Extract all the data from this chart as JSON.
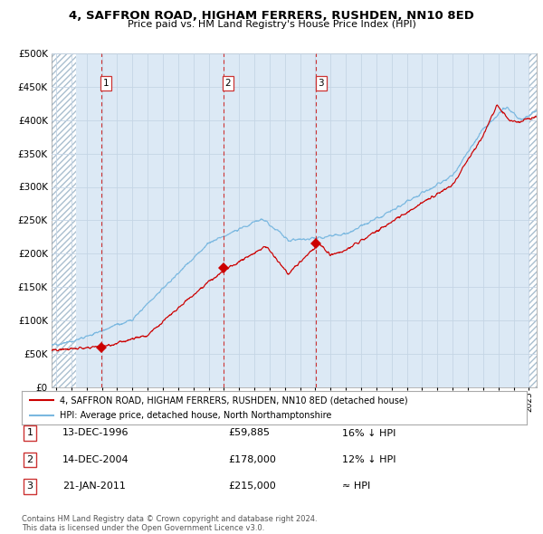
{
  "title1": "4, SAFFRON ROAD, HIGHAM FERRERS, RUSHDEN, NN10 8ED",
  "title2": "Price paid vs. HM Land Registry's House Price Index (HPI)",
  "legend_line1": "4, SAFFRON ROAD, HIGHAM FERRERS, RUSHDEN, NN10 8ED (detached house)",
  "legend_line2": "HPI: Average price, detached house, North Northamptonshire",
  "table_rows": [
    {
      "num": "1",
      "date": "13-DEC-1996",
      "price": "£59,885",
      "hpi": "16% ↓ HPI"
    },
    {
      "num": "2",
      "date": "14-DEC-2004",
      "price": "£178,000",
      "hpi": "12% ↓ HPI"
    },
    {
      "num": "3",
      "date": "21-JAN-2011",
      "price": "£215,000",
      "hpi": "≈ HPI"
    }
  ],
  "footer": "Contains HM Land Registry data © Crown copyright and database right 2024.\nThis data is licensed under the Open Government Licence v3.0.",
  "sale_dates": [
    1996.96,
    2004.96,
    2011.06
  ],
  "sale_prices": [
    59885,
    178000,
    215000
  ],
  "sale_labels": [
    "1",
    "2",
    "3"
  ],
  "hpi_color": "#7ab8e0",
  "price_color": "#cc0000",
  "bg_color": "#dce9f5",
  "hatch_color": "#aabfcf",
  "grid_color": "#c8d8e8",
  "dashed_line_color": "#cc3333",
  "ylim": [
    0,
    500000
  ],
  "xlim_start": 1993.7,
  "xlim_end": 2025.5,
  "hatch_end": 1995.3,
  "hatch_start_right": 2025.0
}
